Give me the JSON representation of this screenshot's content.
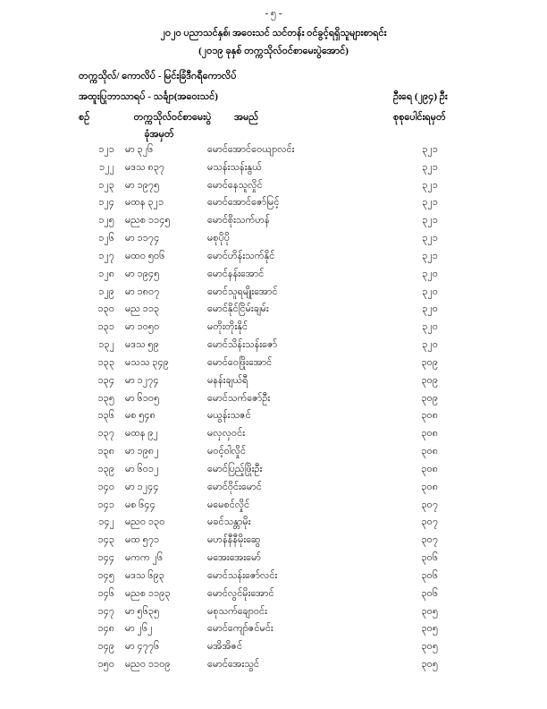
{
  "page": {
    "number_label": "- ၅ -"
  },
  "header": {
    "title_line1": "၂၀၂၀ ပညာသင်နှစ်၊ အဝေးသင် သင်တန်း ဝင်ခွင့်ရရှိသူများစာရင်း",
    "title_line2": "(၂၀၁၉ ခုနှစ် တက္ကသိုလ်ဝင်စာမေးပွဲအောင်)",
    "institution_line": "တက္ကသိုလ်/ ကောလိပ် - မြင်းခြံဒီဂရီကောလိပ်",
    "specialization_line": "အထူးပြုဘာသာရပ် - သင်္ချာ(အဝေးသင်)",
    "count_label": "ဦးရေ (၂၉၄) ဦး"
  },
  "table": {
    "headers": {
      "serial": "စဉ်",
      "roll_line1": "တက္ကသိုလ်ဝင်စာမေးပွဲ",
      "roll_line2": "ခုံအမှတ်",
      "name": "အမည်",
      "total_marks": "စုစုပေါင်းရမှတ်"
    },
    "rows": [
      {
        "no": "၁၂၁",
        "roll": "မာ ၃၂၆",
        "name": "မောင်အောင်ဝေယျာလင်း",
        "marks": "၃၂၁"
      },
      {
        "no": "၁၂၂",
        "roll": "မဒသ ၈၃၇",
        "name": "မသန်းသန်းနွယ်",
        "marks": "၃၂၁"
      },
      {
        "no": "၁၂၃",
        "roll": "မာ ၁၉၇၅",
        "name": "မောင်နေသူလှိုင်",
        "marks": "၃၂၁"
      },
      {
        "no": "၁၂၄",
        "roll": "မထန ၃၂၁",
        "name": "မောင်အောင်ဇော်မြင့်",
        "marks": "၃၂၁"
      },
      {
        "no": "၁၂၅",
        "roll": "မညစ ၁၁၄၅",
        "name": "မောင်စိုးသက်ဟန်",
        "marks": "၃၂၁"
      },
      {
        "no": "၁၂၆",
        "roll": "မာ ၁၁၇၄",
        "name": "မစုပိုပို",
        "marks": "၃၂၁"
      },
      {
        "no": "၁၂၇",
        "roll": "မထဝ ၅၀၆",
        "name": "မောင်ဟိန်းသက်နိုင်",
        "marks": "၃၂၁"
      },
      {
        "no": "၁၂၈",
        "roll": "မာ ၁၉၄၅",
        "name": "မောင်နန်းအောင်",
        "marks": "၃၂၀"
      },
      {
        "no": "၁၂၉",
        "roll": "မာ ၁၈၀၇",
        "name": "မောင်သူရမျိုးအောင်",
        "marks": "၃၂၀"
      },
      {
        "no": "၁၃၀",
        "roll": "မည ၁၁၃",
        "name": "မောင်နိုင်ငြိမ်းချမ်း",
        "marks": "၃၂၀"
      },
      {
        "no": "၁၃၁",
        "roll": "မာ ၁၀၅၀",
        "name": "မတိုးတိုးနိုင်",
        "marks": "၃၂၀"
      },
      {
        "no": "၁၃၂",
        "roll": "မဒသ ၅၉",
        "name": "မောင်သိန်းသန်းဇော်",
        "marks": "၃၂၀"
      },
      {
        "no": "၁၃၃",
        "roll": "မသသ ၃၄၉",
        "name": "မောင်ဝေဖြိုးအောင်",
        "marks": "၃၀၉"
      },
      {
        "no": "၁၃၄",
        "roll": "မာ ၁၂၇၄",
        "name": "မနန်းချယ်ရီ",
        "marks": "၃၀၉"
      },
      {
        "no": "၁၃၅",
        "roll": "မာ ၆၁၀၅",
        "name": "မောင်သက်ဇော်ဦး",
        "marks": "၃၀၉"
      },
      {
        "no": "၁၃၆",
        "roll": "မစ ၅၄၈",
        "name": "မယွန်းသဇင်",
        "marks": "၃၀၈"
      },
      {
        "no": "၁၃၇",
        "roll": "မထန ၉၂",
        "name": "မလှလှဝင်း",
        "marks": "၃၀၈"
      },
      {
        "no": "၁၃၈",
        "roll": "မာ ၁၉၈၂",
        "name": "မဝင့်ဝါလှိုင်",
        "marks": "၃၀၈"
      },
      {
        "no": "၁၃၉",
        "roll": "မာ ၆၀၁၂",
        "name": "မောင်ပြည့်ဖြိုးဦး",
        "marks": "၃၀၈"
      },
      {
        "no": "၁၄၀",
        "roll": "မာ ၁၂၄၄",
        "name": "မောင်ဝိုင်းမောင်",
        "marks": "၃၀၈"
      },
      {
        "no": "၁၄၁",
        "roll": "မစ ၆၄၄",
        "name": "မမေစင်လှိုင်",
        "marks": "၃၀၇"
      },
      {
        "no": "၁၄၂",
        "roll": "မညဝ ၁၃၀",
        "name": "မခင်သန္တာမိုး",
        "marks": "၃၀၇"
      },
      {
        "no": "၁၄၃",
        "roll": "မထ ၅၇၁",
        "name": "မဟန်နီနီမိုးဆွေ",
        "marks": "၃၀၇"
      },
      {
        "no": "၁၄၄",
        "roll": "မကက ၂၆",
        "name": "မအေးအေးမော်",
        "marks": "၃၀၆"
      },
      {
        "no": "၁၄၅",
        "roll": "မဒသ ၆၉၃",
        "name": "မောင်သန်းဇော်လင်း",
        "marks": "၃၀၆"
      },
      {
        "no": "၁၄၆",
        "roll": "မညစ ၁၁၉၃",
        "name": "မောင်လွင်မိုးအောင်",
        "marks": "၃၀၆"
      },
      {
        "no": "၁၄၇",
        "roll": "မာ ၅၆၃၅",
        "name": "မစုသက်ချောဝင်း",
        "marks": "၃၀၅"
      },
      {
        "no": "၁၄၈",
        "roll": "မာ ၂၆၂",
        "name": "မောင်ကျော်ဇင်မင်း",
        "marks": "၃၀၅"
      },
      {
        "no": "၁၄၉",
        "roll": "မာ ၄၇၇၆",
        "name": "မအိအိဇင်",
        "marks": "၃၀၅"
      },
      {
        "no": "၁၅၀",
        "roll": "မညဝ ၁၁၀၉",
        "name": "မောင်အေးသွင်",
        "marks": "၃၀၅"
      }
    ]
  }
}
